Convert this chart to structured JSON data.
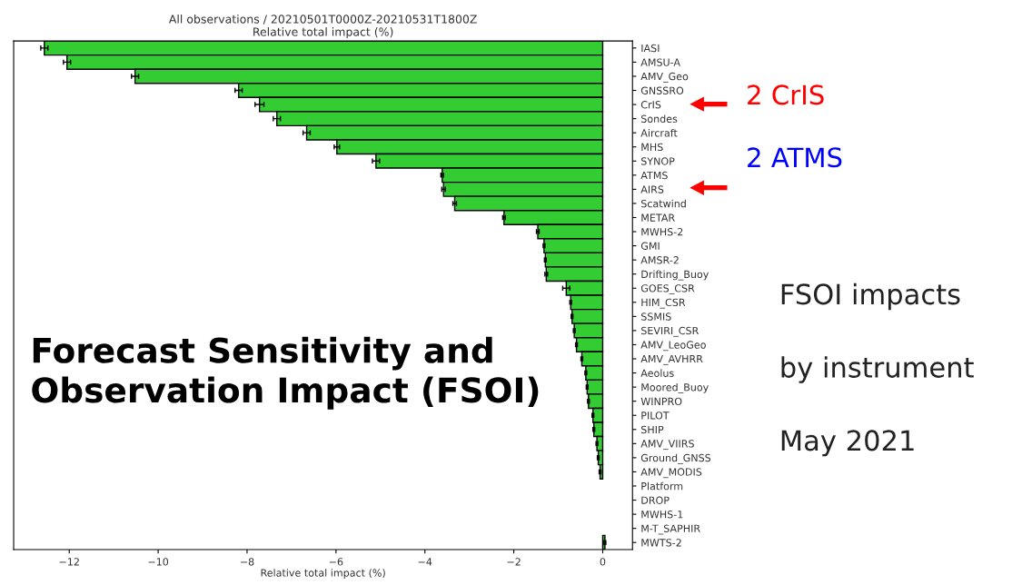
{
  "chart_data": {
    "type": "bar",
    "orientation": "horizontal",
    "title": "All observations / 20210501T0000Z-20210531T1800Z",
    "subtitle": "Relative total impact (%)",
    "xlabel": "Relative total impact (%)",
    "categories": [
      "IASI",
      "AMSU-A",
      "AMV_Geo",
      "GNSSRO",
      "CrIS",
      "Sondes",
      "Aircraft",
      "MHS",
      "SYNOP",
      "ATMS",
      "AIRS",
      "Scatwind",
      "METAR",
      "MWHS-2",
      "GMI",
      "AMSR-2",
      "Drifting_Buoy",
      "GOES_CSR",
      "HIM_CSR",
      "SSMIS",
      "SEVIRI_CSR",
      "AMV_LeoGeo",
      "AMV_AVHRR",
      "Aeolus",
      "Moored_Buoy",
      "WINPRO",
      "PILOT",
      "SHIP",
      "AMV_VIIRS",
      "Ground_GNSS",
      "AMV_MODIS",
      "Platform",
      "DROP",
      "MWHS-1",
      "M-T_SAPHIR",
      "MWTS-2"
    ],
    "values": [
      -12.56,
      -12.05,
      -10.52,
      -8.19,
      -7.72,
      -7.33,
      -6.66,
      -5.98,
      -5.1,
      -3.61,
      -3.58,
      -3.33,
      -2.22,
      -1.46,
      -1.32,
      -1.29,
      -1.27,
      -0.82,
      -0.72,
      -0.69,
      -0.64,
      -0.59,
      -0.47,
      -0.38,
      -0.35,
      -0.32,
      -0.22,
      -0.2,
      -0.13,
      -0.1,
      -0.06,
      null,
      null,
      null,
      null,
      0.05
    ],
    "errors": [
      0.08,
      0.08,
      0.08,
      0.08,
      0.1,
      0.08,
      0.08,
      0.06,
      0.08,
      0.03,
      0.04,
      0.04,
      0.03,
      0.03,
      0.02,
      0.02,
      0.03,
      0.08,
      0.02,
      0.02,
      0.02,
      0.02,
      0.02,
      0.02,
      0.02,
      0.02,
      0.02,
      0.02,
      0.02,
      0.02,
      0.02,
      null,
      null,
      null,
      null,
      0.02
    ],
    "color": "#33cc33",
    "xlim": [
      -13.25,
      0.67
    ],
    "xticks": [
      {
        "value": -12,
        "label": "−12"
      },
      {
        "value": -10,
        "label": "−10"
      },
      {
        "value": -8,
        "label": "−8"
      },
      {
        "value": -6,
        "label": "−6"
      },
      {
        "value": -4,
        "label": "−4"
      },
      {
        "value": -2,
        "label": "−2"
      },
      0
    ],
    "grid": false,
    "legend": false,
    "annotations": [
      "2 CrIS",
      "2 ATMS",
      "FSOI impacts",
      "by instrument",
      "May 2021",
      "Forecast Sensitivity and\nObservation Impact (FSOI)"
    ]
  }
}
